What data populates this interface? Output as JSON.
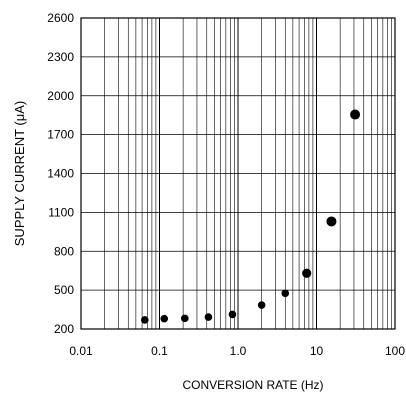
{
  "chart_data": {
    "type": "scatter",
    "title": "",
    "xlabel": "CONVERSION RATE (Hz)",
    "ylabel": "SUPPLY CURRENT (μA)",
    "x_scale": "log",
    "xlim": [
      0.01,
      100
    ],
    "ylim": [
      200,
      2600
    ],
    "x_tick_labels": [
      "0.01",
      "0.1",
      "1.0",
      "10",
      "100"
    ],
    "x_tick_values": [
      0.01,
      0.1,
      1,
      10,
      100
    ],
    "y_tick_labels": [
      "200",
      "500",
      "800",
      "1100",
      "1400",
      "1700",
      "2000",
      "2300",
      "2600"
    ],
    "y_tick_values": [
      200,
      500,
      800,
      1100,
      1400,
      1700,
      2000,
      2300,
      2600
    ],
    "grid": true,
    "legend": "none",
    "marker_color": "#000000",
    "points": [
      {
        "x": 0.065,
        "y": 270
      },
      {
        "x": 0.115,
        "y": 280
      },
      {
        "x": 0.21,
        "y": 282
      },
      {
        "x": 0.42,
        "y": 292
      },
      {
        "x": 0.85,
        "y": 312
      },
      {
        "x": 2.0,
        "y": 385
      },
      {
        "x": 4.0,
        "y": 475
      },
      {
        "x": 7.5,
        "y": 630
      },
      {
        "x": 15.5,
        "y": 1030
      },
      {
        "x": 31,
        "y": 1855
      }
    ]
  }
}
